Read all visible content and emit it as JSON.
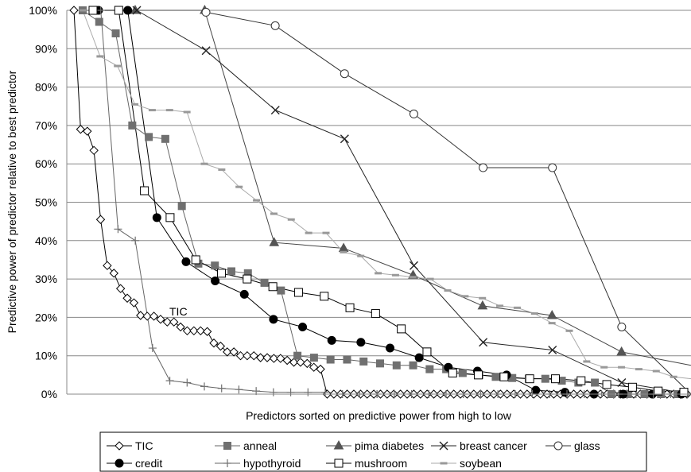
{
  "chart_data": {
    "type": "line",
    "xlabel": "Predictors sorted on predictive power from high to low",
    "ylabel": "Predictive power of predictor relative to best predictor",
    "ylim": [
      0,
      100
    ],
    "y_ticks": [
      "0%",
      "10%",
      "20%",
      "30%",
      "40%",
      "50%",
      "60%",
      "70%",
      "80%",
      "90%",
      "100%"
    ],
    "x_axis_labels": "none",
    "grid": "horizontal",
    "legend_position": "bottom",
    "annotation": "TIC",
    "series": [
      {
        "name": "TIC",
        "color": "#000000",
        "marker": "diamond-open",
        "values": [
          100,
          69,
          68.5,
          63.5,
          45.5,
          33.5,
          31.5,
          27.5,
          25,
          23.8,
          20.5,
          20.3,
          20.3,
          19.5,
          18.8,
          18.8,
          17.5,
          16.5,
          16.5,
          16.5,
          16.3,
          13.3,
          12.5,
          11,
          11,
          10,
          10,
          10,
          9.5,
          9.5,
          9.3,
          9.3,
          8.8,
          8.3,
          8.3,
          8,
          7,
          6.5,
          0,
          0,
          0,
          0,
          0,
          0,
          0,
          0,
          0,
          0,
          0,
          0,
          0,
          0,
          0,
          0,
          0,
          0,
          0,
          0,
          0,
          0,
          0,
          0,
          0,
          0,
          0,
          0,
          0,
          0,
          0,
          0,
          0,
          0,
          0,
          0,
          0,
          0,
          0,
          0,
          0,
          0,
          0,
          0,
          0,
          0,
          0,
          0,
          0,
          0,
          0,
          0,
          0,
          0,
          0
        ]
      },
      {
        "name": "anneal",
        "color": "#707070",
        "marker": "square-filled",
        "values": [
          100,
          97,
          94,
          70,
          67,
          66.5,
          49,
          34,
          33.5,
          32,
          31.5,
          29,
          27,
          10,
          9.5,
          9,
          9,
          8.5,
          8,
          7.5,
          7.5,
          6.5,
          6.5,
          5.5,
          5,
          4.5,
          4.2,
          4,
          4,
          3.5,
          3,
          3,
          0,
          0,
          0,
          0,
          0
        ]
      },
      {
        "name": "pima diabetes",
        "color": "#555555",
        "marker": "triangle-filled",
        "values": [
          100,
          100,
          39.5,
          38,
          31,
          23,
          20.5,
          11,
          7.5
        ]
      },
      {
        "name": "breast cancer",
        "color": "#222222",
        "marker": "x",
        "values": [
          100,
          89.5,
          74,
          66.5,
          33.5,
          13.5,
          11.5,
          3,
          0
        ]
      },
      {
        "name": "glass",
        "color": "#333333",
        "marker": "circle-open",
        "values": [
          99.5,
          96,
          83.5,
          73,
          59,
          59,
          17.5,
          0
        ]
      },
      {
        "name": "credit",
        "color": "#000000",
        "marker": "circle-filled",
        "values": [
          100,
          100,
          46,
          34.5,
          29.5,
          26,
          19.5,
          17.5,
          14,
          13.5,
          12,
          9.5,
          7,
          6,
          5,
          1,
          0.5,
          0,
          0,
          0,
          0
        ]
      },
      {
        "name": "hypothyroid",
        "color": "#707070",
        "marker": "plus",
        "values": [
          100,
          100,
          43,
          40,
          12,
          3.5,
          3,
          2,
          1.5,
          1.2,
          0.8,
          0.5,
          0.5,
          0.5,
          0.5,
          0,
          0,
          0,
          0,
          0,
          0,
          0,
          0,
          0,
          0,
          0,
          0,
          0,
          0,
          0,
          0,
          0,
          0,
          0,
          0,
          0
        ]
      },
      {
        "name": "mushroom",
        "color": "#000000",
        "marker": "square-open",
        "values": [
          100,
          100,
          53,
          46,
          35,
          31.5,
          30,
          28,
          26.5,
          25.5,
          22.5,
          21,
          17,
          11,
          5.5,
          5,
          4.5,
          4,
          4,
          3.5,
          2.5,
          1.8,
          0.8,
          0.5
        ]
      },
      {
        "name": "soybean",
        "color": "#999999",
        "marker": "dash",
        "values": [
          100,
          88,
          85.5,
          75.5,
          74,
          74,
          73.5,
          60,
          58.5,
          54,
          50.5,
          47,
          45.5,
          42,
          42,
          37,
          36,
          31.5,
          31,
          30.5,
          30,
          27,
          25.5,
          25,
          23,
          22.5,
          21,
          18.5,
          16.5,
          8.5,
          7,
          7,
          6.5,
          6,
          4.5,
          4
        ]
      }
    ]
  }
}
